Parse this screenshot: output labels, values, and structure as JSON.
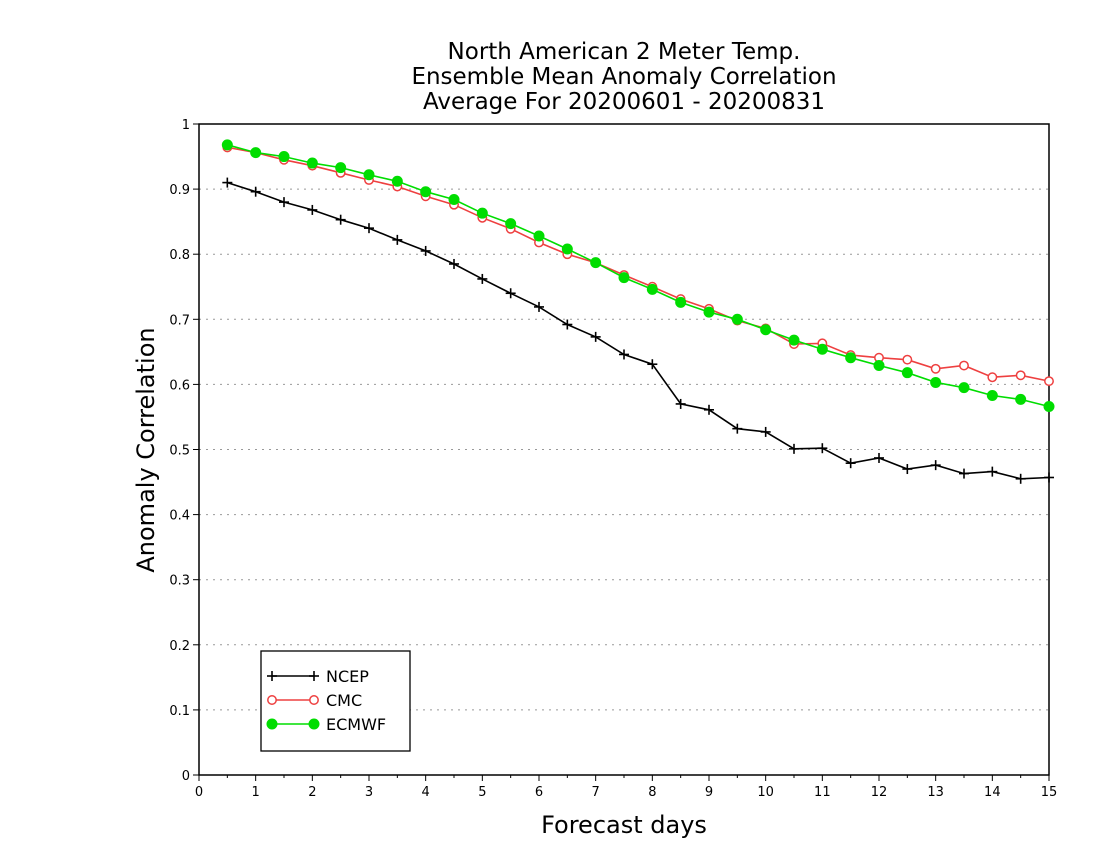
{
  "chart_data": {
    "type": "line",
    "title": [
      "North American 2 Meter Temp.",
      "Ensemble Mean Anomaly Correlation",
      "Average For 20200601 - 20200831"
    ],
    "xlabel": "Forecast days",
    "ylabel": "Anomaly Correlation",
    "xlim": [
      0,
      15
    ],
    "ylim": [
      0,
      1
    ],
    "xticks": [
      "0",
      "1",
      "2",
      "3",
      "4",
      "5",
      "6",
      "7",
      "8",
      "9",
      "10",
      "11",
      "12",
      "13",
      "14",
      "15"
    ],
    "yticks": [
      "0",
      "0.1",
      "0.2",
      "0.3",
      "0.4",
      "0.5",
      "0.6",
      "0.7",
      "0.8",
      "0.9",
      "1"
    ],
    "grid": "horizontal dotted",
    "legend_position": "bottom-left",
    "x": [
      0.5,
      1,
      1.5,
      2,
      2.5,
      3,
      3.5,
      4,
      4.5,
      5,
      5.5,
      6,
      6.5,
      7,
      7.5,
      8,
      8.5,
      9,
      9.5,
      10,
      10.5,
      11,
      11.5,
      12,
      12.5,
      13,
      13.5,
      14,
      14.5,
      15
    ],
    "series": [
      {
        "name": "NCEP",
        "color": "#000000",
        "marker": "plus",
        "values": [
          0.91,
          0.896,
          0.88,
          0.868,
          0.853,
          0.84,
          0.822,
          0.805,
          0.785,
          0.762,
          0.74,
          0.719,
          0.692,
          0.673,
          0.646,
          0.631,
          0.57,
          0.561,
          0.532,
          0.527,
          0.501,
          0.502,
          0.479,
          0.487,
          0.47,
          0.476,
          0.463,
          0.466,
          0.455,
          0.457
        ]
      },
      {
        "name": "CMC",
        "color": "#ee4040",
        "marker": "open-circle",
        "values": [
          0.964,
          0.956,
          0.945,
          0.936,
          0.925,
          0.914,
          0.904,
          0.889,
          0.876,
          0.856,
          0.839,
          0.818,
          0.8,
          0.787,
          0.768,
          0.75,
          0.731,
          0.716,
          0.698,
          0.686,
          0.662,
          0.663,
          0.645,
          0.641,
          0.638,
          0.624,
          0.629,
          0.611,
          0.614,
          0.605
        ]
      },
      {
        "name": "ECMWF",
        "color": "#00dd00",
        "marker": "filled-circle",
        "values": [
          0.968,
          0.956,
          0.95,
          0.94,
          0.933,
          0.922,
          0.912,
          0.896,
          0.884,
          0.863,
          0.847,
          0.828,
          0.808,
          0.787,
          0.764,
          0.746,
          0.726,
          0.711,
          0.7,
          0.684,
          0.668,
          0.654,
          0.641,
          0.629,
          0.618,
          0.603,
          0.595,
          0.583,
          0.577,
          0.566
        ]
      }
    ]
  }
}
